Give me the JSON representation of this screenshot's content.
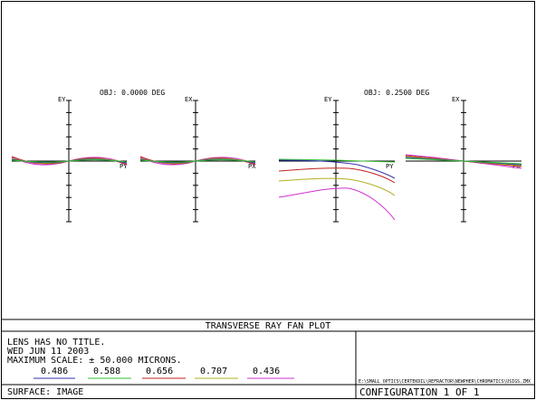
{
  "plot": {
    "field1": {
      "label": "OBJ: 0.0000 DEG"
    },
    "field2": {
      "label": "OBJ: 0.2500 DEG"
    },
    "axes": {
      "ey": "EY",
      "ex": "EX",
      "py": "PY",
      "px": "PX"
    }
  },
  "footer": {
    "title": "TRANSVERSE RAY FAN PLOT",
    "lines": [
      "LENS HAS NO TITLE.",
      "WED JUN 11 2003",
      "MAXIMUM SCALE: ± 50.000 MICRONS."
    ],
    "surface": "SURFACE: IMAGE",
    "wavelengths": [
      {
        "label": "0.486",
        "color": "#3030b0"
      },
      {
        "label": "0.588",
        "color": "#30c030"
      },
      {
        "label": "0.656",
        "color": "#c02020"
      },
      {
        "label": "0.707",
        "color": "#b0b020"
      },
      {
        "label": "0.436",
        "color": "#d030d0"
      }
    ],
    "path": "E:\\SMALL OPTICS\\CERTEKDIL\\REFRACTOR\\NEWPHER\\CHROMATICS\\USIGS.ZMX",
    "configuration": "CONFIGURATION 1 OF 1"
  },
  "colors": {
    "blue": "#3030b0",
    "green": "#30c030",
    "red": "#c02020",
    "yellow": "#b0b020",
    "magenta": "#d030d0"
  }
}
